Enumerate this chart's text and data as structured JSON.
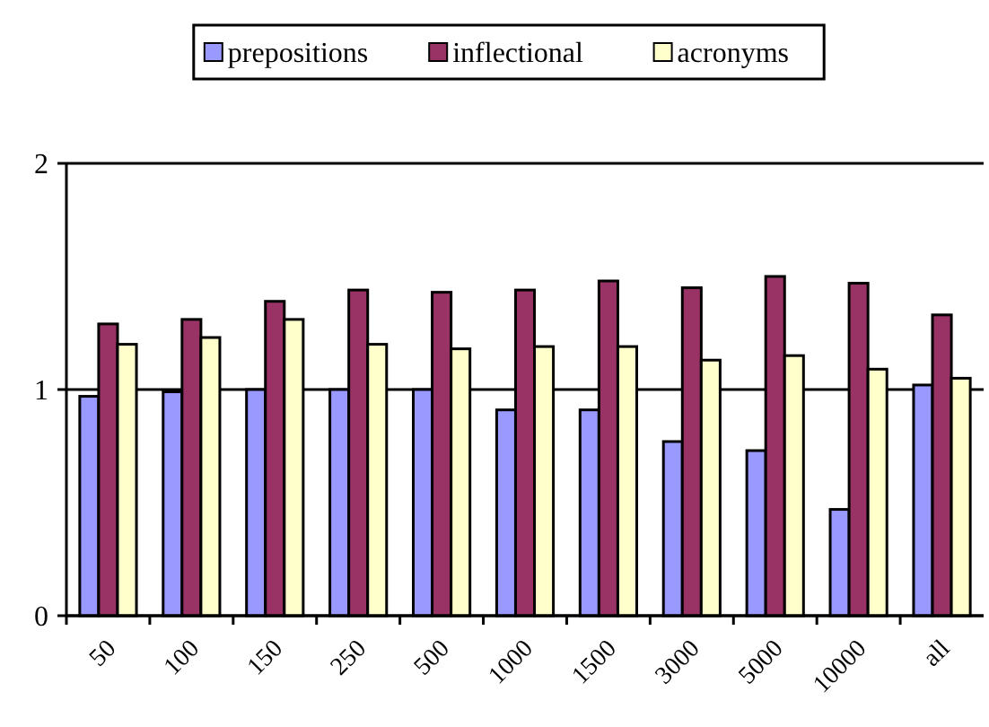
{
  "chart_data": {
    "type": "bar",
    "categories": [
      "50",
      "100",
      "150",
      "250",
      "500",
      "1000",
      "1500",
      "3000",
      "5000",
      "10000",
      "all"
    ],
    "series": [
      {
        "name": "prepositions",
        "color": "#9999ff",
        "values": [
          0.97,
          0.99,
          1.0,
          1.0,
          1.0,
          0.91,
          0.91,
          0.77,
          0.73,
          0.47,
          1.02
        ]
      },
      {
        "name": "inflectional",
        "color": "#993366",
        "values": [
          1.29,
          1.31,
          1.39,
          1.44,
          1.43,
          1.44,
          1.48,
          1.45,
          1.5,
          1.47,
          1.33
        ]
      },
      {
        "name": "acronyms",
        "color": "#ffffcc",
        "values": [
          1.2,
          1.23,
          1.31,
          1.2,
          1.18,
          1.19,
          1.19,
          1.13,
          1.15,
          1.09,
          1.05
        ]
      }
    ],
    "ylim": [
      0,
      2
    ],
    "yticks": [
      0,
      1,
      2
    ],
    "grid": "y",
    "legend": "top"
  }
}
